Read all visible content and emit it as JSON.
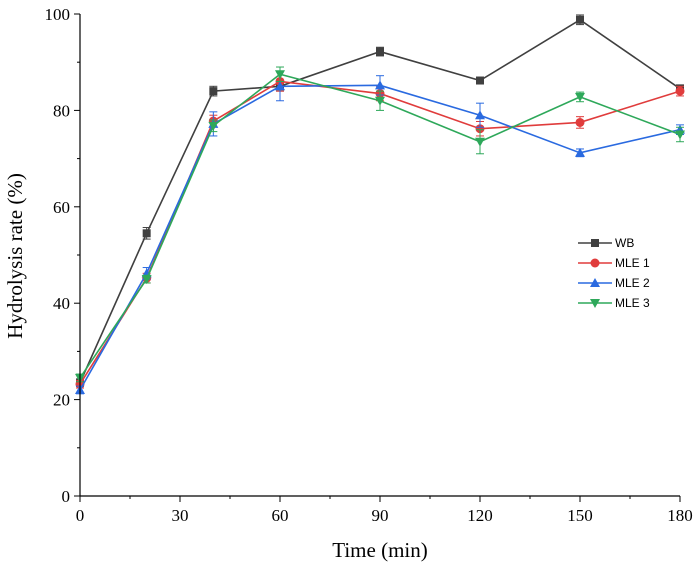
{
  "chart_data": {
    "type": "line",
    "title": "",
    "xlabel": "Time (min)",
    "ylabel": "Hydrolysis rate (%)",
    "xlim": [
      0,
      180
    ],
    "ylim": [
      0,
      100
    ],
    "xticks": [
      0,
      30,
      60,
      90,
      120,
      150,
      180
    ],
    "yticks": [
      0,
      20,
      40,
      60,
      80,
      100
    ],
    "grid": false,
    "legend_position": "right-middle",
    "x": [
      0,
      20,
      40,
      60,
      90,
      120,
      150,
      180
    ],
    "series": [
      {
        "name": "WB",
        "color": "#404040",
        "marker": "square",
        "values": [
          23.5,
          54.5,
          84.0,
          85.0,
          92.2,
          86.2,
          98.8,
          84.5
        ],
        "errors": [
          0.8,
          1.2,
          1.0,
          1.0,
          0.9,
          0.6,
          1.0,
          0.8
        ]
      },
      {
        "name": "MLE 1",
        "color": "#e03c3c",
        "marker": "circle",
        "values": [
          23.2,
          45.2,
          77.8,
          86.0,
          83.5,
          76.2,
          77.5,
          84.0
        ],
        "errors": [
          0.8,
          1.0,
          1.2,
          2.0,
          1.5,
          1.5,
          1.2,
          1.0
        ]
      },
      {
        "name": "MLE 2",
        "color": "#2a6ae0",
        "marker": "triangle-up",
        "values": [
          22.0,
          46.2,
          77.2,
          85.0,
          85.2,
          79.0,
          71.2,
          76.0
        ],
        "errors": [
          0.8,
          1.2,
          2.5,
          3.0,
          2.0,
          2.5,
          0.8,
          1.0
        ]
      },
      {
        "name": "MLE 3",
        "color": "#2ea85a",
        "marker": "triangle-down",
        "values": [
          24.5,
          45.0,
          76.8,
          87.5,
          82.0,
          73.5,
          82.8,
          75.0
        ],
        "errors": [
          0.8,
          0.8,
          1.2,
          1.5,
          2.0,
          2.5,
          1.0,
          1.5
        ]
      }
    ]
  }
}
